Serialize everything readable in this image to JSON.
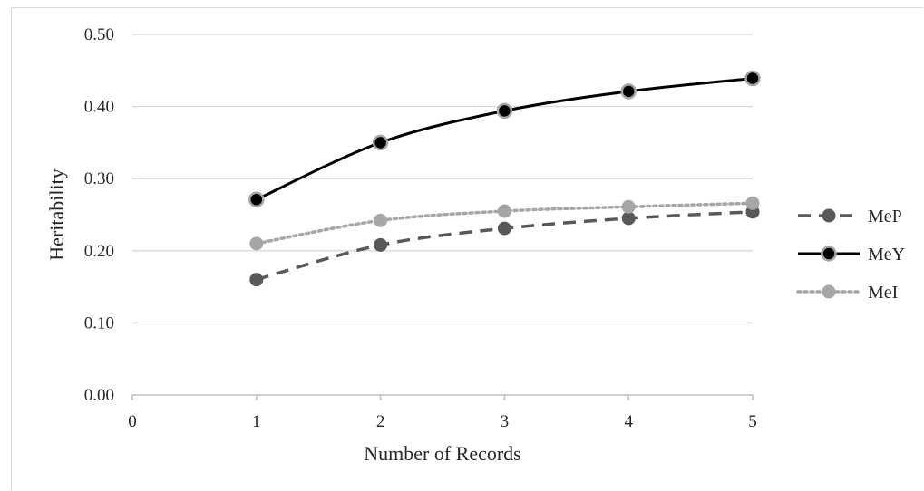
{
  "chart_data": {
    "type": "line",
    "title": "",
    "xlabel": "Number of Records",
    "ylabel": "Heritability",
    "x_ticks": [
      "0",
      "1",
      "2",
      "3",
      "4",
      "5"
    ],
    "y_ticks": [
      "0.00",
      "0.10",
      "0.20",
      "0.30",
      "0.40",
      "0.50"
    ],
    "xlim": [
      0,
      5
    ],
    "ylim": [
      0,
      0.5
    ],
    "grid": "horizontal",
    "legend_position": "right",
    "x": [
      1,
      2,
      3,
      4,
      5
    ],
    "series": [
      {
        "name": "MeP",
        "values": [
          0.16,
          0.208,
          0.231,
          0.245,
          0.254
        ],
        "color": "#595959",
        "line_style": "dashed",
        "marker": "circle"
      },
      {
        "name": "MeY",
        "values": [
          0.271,
          0.35,
          0.394,
          0.421,
          0.439
        ],
        "color": "#000000",
        "line_style": "solid",
        "marker": "circle-outlined"
      },
      {
        "name": "MeI",
        "values": [
          0.21,
          0.242,
          0.255,
          0.261,
          0.266
        ],
        "color": "#a6a6a6",
        "line_style": "dotted",
        "marker": "circle"
      }
    ]
  }
}
